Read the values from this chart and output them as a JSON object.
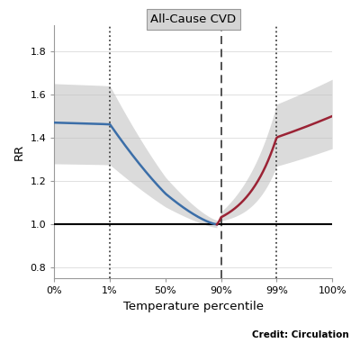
{
  "title": "All-Cause CVD",
  "xlabel": "Temperature percentile",
  "ylabel": "RR",
  "credit": "Credit: Circulation",
  "ylim": [
    0.75,
    1.92
  ],
  "yticks": [
    0.8,
    1.0,
    1.2,
    1.4,
    1.6,
    1.8
  ],
  "yticklabels": [
    "0.8",
    "1.0",
    "1.2",
    "1.4",
    "1.6",
    "1.8"
  ],
  "xtick_positions": [
    0,
    1,
    50,
    90,
    99,
    100
  ],
  "xticklabels": [
    "0%",
    "1%",
    "50%",
    "90%",
    "99%",
    "100%"
  ],
  "hline_y": 1.0,
  "dashed_vline_pct": 90,
  "dotted_vline_pct1": 1,
  "dotted_vline_pct2": 99,
  "blue_color": "#3B6EA8",
  "red_color": "#9B2335",
  "ci_color": "#BEBEBE",
  "ci_alpha": 0.55,
  "hline_color": "#000000",
  "title_bg_color": "#D4D4D4",
  "title_border_color": "#999999",
  "background_color": "#FFFFFF",
  "panel_bg_color": "#FFFFFF",
  "spine_color": "#999999",
  "grid_color": "#E0E0E0",
  "vline_color": "#444444"
}
